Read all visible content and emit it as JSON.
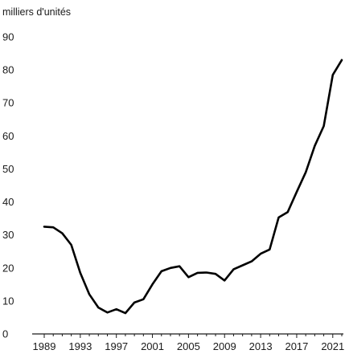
{
  "chart_data": {
    "type": "line",
    "title": "",
    "unit_label": "milliers d'unités",
    "xlabel": "",
    "ylabel": "",
    "xlim": [
      1989,
      2022
    ],
    "ylim": [
      0,
      90
    ],
    "y_ticks": [
      0,
      10,
      20,
      30,
      40,
      50,
      60,
      70,
      80,
      90
    ],
    "x_ticks": [
      1989,
      1993,
      1997,
      2001,
      2005,
      2009,
      2013,
      2017,
      2021
    ],
    "grid": false,
    "legend": "none",
    "colors": {
      "series": "#000000",
      "axis": "#1a1a1a"
    },
    "series": [
      {
        "x": [
          1989,
          1990,
          1991,
          1992,
          1993,
          1994,
          1995,
          1996,
          1997,
          1998,
          1999,
          2000,
          2001,
          2002,
          2003,
          2004,
          2005,
          2006,
          2007,
          2008,
          2009,
          2010,
          2011,
          2012,
          2013,
          2014,
          2015,
          2016,
          2017,
          2018,
          2019,
          2020,
          2021,
          2022
        ],
        "values": [
          32.5,
          32.3,
          30.5,
          27.0,
          18.5,
          12.0,
          8.0,
          6.5,
          7.5,
          6.3,
          9.5,
          10.5,
          15.0,
          19.0,
          20.0,
          20.5,
          17.2,
          18.5,
          18.6,
          18.2,
          16.2,
          19.6,
          20.8,
          22.0,
          24.3,
          25.6,
          35.3,
          36.9,
          43.0,
          49.0,
          57.0,
          63.0,
          78.5,
          83.0
        ]
      }
    ]
  }
}
